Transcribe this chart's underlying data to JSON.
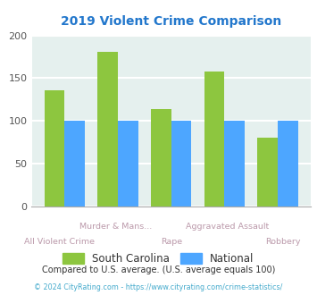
{
  "title": "2019 Violent Crime Comparison",
  "title_color": "#2277cc",
  "sc_values": [
    136,
    181,
    114,
    158,
    80
  ],
  "nat_values": [
    100,
    100,
    100,
    100,
    100
  ],
  "sc_color": "#8dc63f",
  "nat_color": "#4da6ff",
  "ylim": [
    0,
    200
  ],
  "yticks": [
    0,
    50,
    100,
    150,
    200
  ],
  "bg_color": "#e5f0ee",
  "grid_color": "#ffffff",
  "legend_sc": "South Carolina",
  "legend_nat": "National",
  "xlabel_top": [
    "",
    "Murder & Mans...",
    "",
    "Aggravated Assault",
    ""
  ],
  "xlabel_bottom": [
    "All Violent Crime",
    "",
    "Rape",
    "",
    "Robbery"
  ],
  "xlabel_color": "#bb99aa",
  "footnote1": "Compared to U.S. average. (U.S. average equals 100)",
  "footnote1_color": "#333333",
  "footnote2": "© 2024 CityRating.com - https://www.cityrating.com/crime-statistics/",
  "footnote2_color": "#44aacc"
}
